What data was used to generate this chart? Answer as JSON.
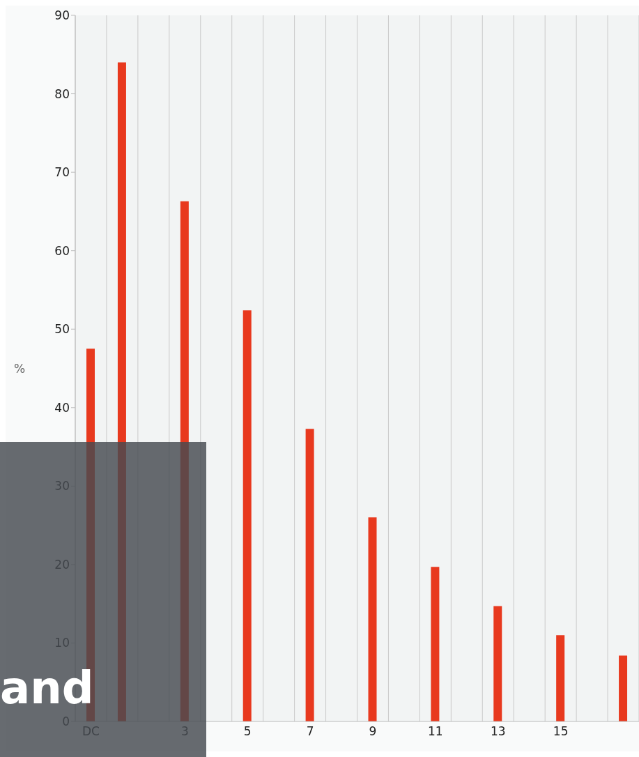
{
  "chart_data": {
    "type": "bar",
    "ylabel": "%",
    "categories": [
      "DC",
      null,
      null,
      "3",
      null,
      "5",
      null,
      "7",
      null,
      "9",
      null,
      "11",
      null,
      "13",
      null,
      "15",
      null,
      null
    ],
    "values": [
      47.5,
      84,
      null,
      66.3,
      null,
      52.4,
      null,
      37.3,
      null,
      26,
      null,
      19.7,
      null,
      14.7,
      null,
      11,
      null,
      8.4
    ],
    "color": "#e8391e",
    "ylim": [
      0,
      90
    ],
    "yticks": [
      0,
      10,
      20,
      30,
      40,
      50,
      60,
      70,
      80,
      90
    ],
    "grid": "x",
    "annotations": [
      "and"
    ]
  }
}
